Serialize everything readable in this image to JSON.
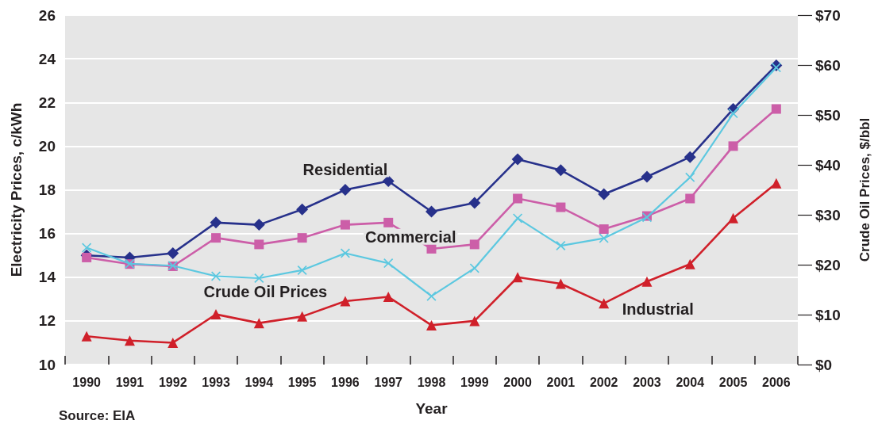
{
  "chart_data": {
    "type": "line",
    "xlabel": "Year",
    "ylabel": "Electricity Prices, c/kWh",
    "y2label": "Crude Oil Prices, $/bbl",
    "annotations": [
      "Source: EIA"
    ],
    "categories": [
      "1990",
      "1991",
      "1992",
      "1993",
      "1994",
      "1995",
      "1996",
      "1997",
      "1998",
      "1999",
      "2000",
      "2001",
      "2002",
      "2003",
      "2004",
      "2005",
      "2006"
    ],
    "series": [
      {
        "name": "Residential",
        "color": "#27318b",
        "marker": "diamond",
        "values": [
          15.0,
          14.9,
          15.1,
          16.5,
          16.4,
          17.1,
          18.0,
          18.4,
          17.0,
          17.4,
          19.4,
          18.9,
          17.8,
          18.6,
          19.5,
          21.7,
          23.7
        ]
      },
      {
        "name": "Commercial",
        "color": "#cc5ea8",
        "marker": "square",
        "values": [
          14.9,
          14.6,
          14.5,
          15.8,
          15.5,
          15.8,
          16.4,
          16.5,
          15.3,
          15.5,
          17.6,
          17.2,
          16.2,
          16.8,
          17.6,
          20.0,
          21.7
        ]
      },
      {
        "name": "Industrial",
        "color": "#d0202a",
        "marker": "triangle",
        "values": [
          11.3,
          11.1,
          11.0,
          12.3,
          11.9,
          12.2,
          12.9,
          13.1,
          11.8,
          12.0,
          14.0,
          13.7,
          12.8,
          13.8,
          14.6,
          16.7,
          18.3
        ]
      },
      {
        "name": "Crude Oil Prices",
        "color": "#5cc8e0",
        "marker": "cross",
        "axis": "y2",
        "values": [
          23.4,
          20.2,
          19.8,
          17.7,
          17.3,
          18.9,
          22.3,
          20.3,
          13.7,
          19.3,
          29.3,
          23.8,
          25.3,
          29.5,
          37.5,
          50.3,
          59.5
        ]
      }
    ],
    "ylim": [
      10,
      26
    ],
    "yticks": [
      10,
      12,
      14,
      16,
      18,
      20,
      22,
      24,
      26
    ],
    "y2lim": [
      0,
      70
    ],
    "y2ticks": [
      {
        "value": 0,
        "label": "$0"
      },
      {
        "value": 10,
        "label": "$10"
      },
      {
        "value": 20,
        "label": "$20"
      },
      {
        "value": 30,
        "label": "$30"
      },
      {
        "value": 40,
        "label": "$40"
      },
      {
        "value": 50,
        "label": "$50"
      },
      {
        "value": 60,
        "label": "$60"
      },
      {
        "value": 70,
        "label": "$70"
      }
    ],
    "grid": "y",
    "legend": false
  }
}
